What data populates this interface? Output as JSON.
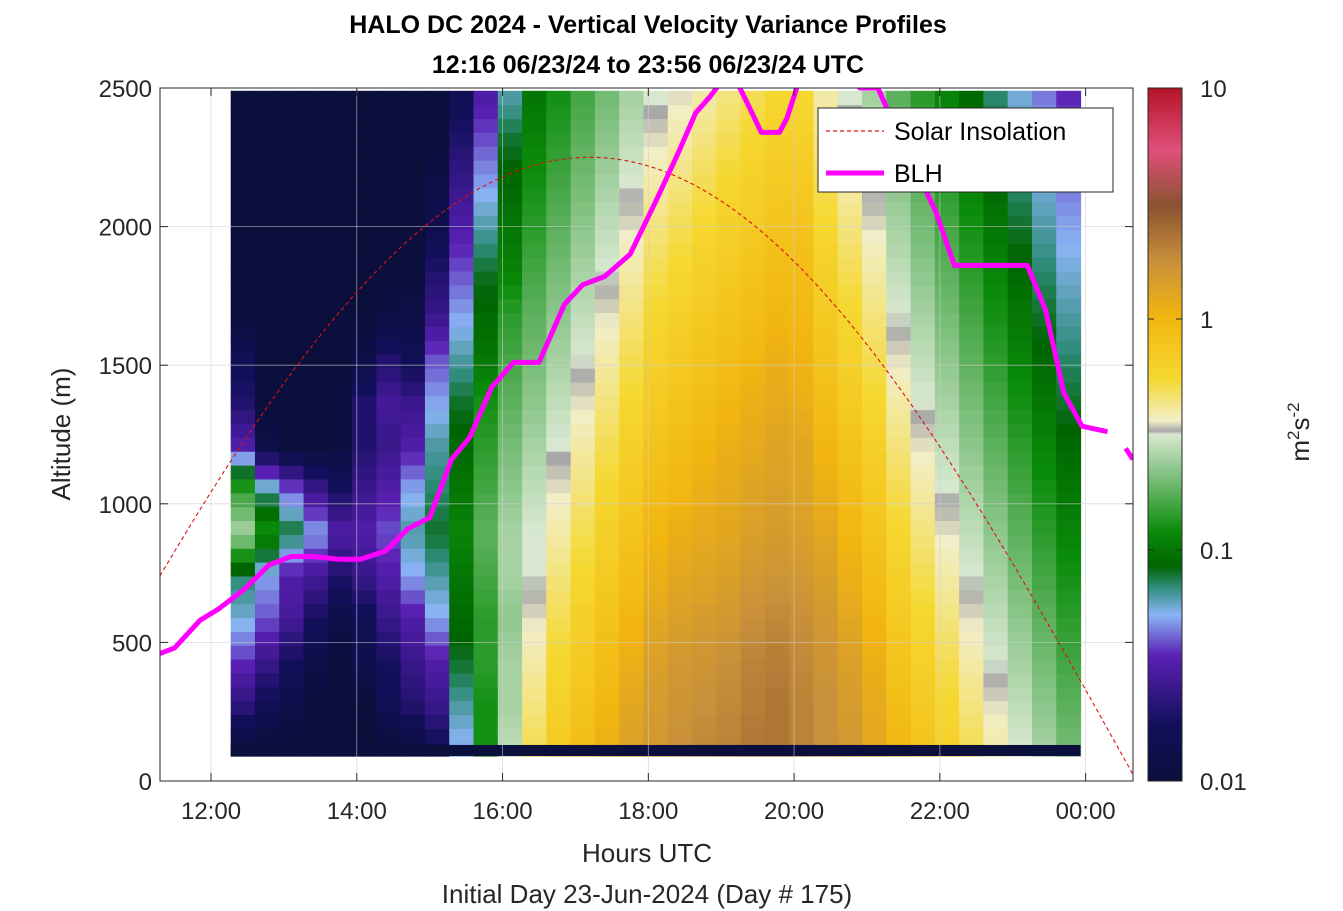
{
  "chart_data": {
    "type": "heatmap",
    "title_line1": "HALO DC 2024 - Vertical Velocity Variance Profiles",
    "title_line2": "12:16 06/23/24 to 23:56 06/23/24  UTC",
    "xlabel": "Hours UTC",
    "xlabel2": "Initial Day 23-Jun-2024 (Day # 175)",
    "ylabel": "Altitude (m)",
    "xlim": [
      11.3,
      24.65
    ],
    "ylim": [
      0,
      2500
    ],
    "x_ticks": [
      12,
      14,
      16,
      18,
      20,
      22,
      24
    ],
    "x_tick_labels": [
      "12:00",
      "14:00",
      "16:00",
      "18:00",
      "20:00",
      "22:00",
      "00:00"
    ],
    "y_ticks": [
      0,
      500,
      1000,
      1500,
      2000,
      2500
    ],
    "y_tick_labels": [
      "0",
      "500",
      "1000",
      "1500",
      "2000",
      "2500"
    ],
    "grid": true,
    "colorbar": {
      "scale": "log",
      "range": [
        0.01,
        10
      ],
      "ticks": [
        0.01,
        0.1,
        1,
        10
      ],
      "tick_labels": [
        "0.01",
        "0.1",
        "1",
        "10"
      ],
      "label_base": "m",
      "label_exp1": "2",
      "label_mid": "s",
      "label_exp2": "-2",
      "stops": [
        {
          "pos": 0.0,
          "color": "#0a0f3c"
        },
        {
          "pos": 0.08,
          "color": "#120f5a"
        },
        {
          "pos": 0.18,
          "color": "#5a1fb4"
        },
        {
          "pos": 0.24,
          "color": "#8ab4f5"
        },
        {
          "pos": 0.28,
          "color": "#2f8c7a"
        },
        {
          "pos": 0.31,
          "color": "#006400"
        },
        {
          "pos": 0.36,
          "color": "#0a8c0a"
        },
        {
          "pos": 0.44,
          "color": "#7ec07e"
        },
        {
          "pos": 0.5,
          "color": "#d8e8d0"
        },
        {
          "pos": 0.505,
          "color": "#a8a8a8"
        },
        {
          "pos": 0.52,
          "color": "#f2eec8"
        },
        {
          "pos": 0.58,
          "color": "#f5d830"
        },
        {
          "pos": 0.67,
          "color": "#f2b510"
        },
        {
          "pos": 0.75,
          "color": "#c8903a"
        },
        {
          "pos": 0.83,
          "color": "#8a5230"
        },
        {
          "pos": 0.91,
          "color": "#e0507a"
        },
        {
          "pos": 1.0,
          "color": "#b41428"
        }
      ]
    },
    "series": [
      {
        "name": "Solar Insolation",
        "style": "dashed",
        "color": "#e01010",
        "peak_x": 17.2,
        "peak_y": 2250,
        "zero_x": 24.7
      },
      {
        "name": "BLH",
        "style": "solid",
        "color": "#ff00ff",
        "x": [
          11.3,
          11.5,
          11.85,
          12.1,
          12.45,
          12.8,
          13.1,
          13.4,
          13.75,
          14.05,
          14.4,
          14.7,
          15.0,
          15.3,
          15.55,
          15.85,
          16.15,
          16.5,
          16.85,
          17.1,
          17.4,
          17.75,
          18.1,
          18.4,
          18.65,
          18.85,
          19.05,
          19.2,
          19.35,
          19.55,
          19.8,
          19.9,
          20.05,
          20.2,
          20.45,
          20.7,
          20.9,
          21.15,
          21.4,
          21.7,
          21.95,
          22.2,
          22.55,
          22.85,
          23.2,
          23.45,
          23.7,
          23.95,
          24.3
        ],
        "y": [
          460,
          480,
          580,
          620,
          690,
          780,
          810,
          810,
          800,
          800,
          830,
          910,
          950,
          1160,
          1240,
          1420,
          1510,
          1510,
          1720,
          1790,
          1820,
          1900,
          2090,
          2260,
          2410,
          2470,
          2540,
          2530,
          2450,
          2340,
          2340,
          2390,
          2510,
          2560,
          2580,
          2560,
          2500,
          2500,
          2350,
          2190,
          2050,
          1860,
          1860,
          1860,
          1860,
          1700,
          1400,
          1280,
          1260
        ]
      },
      {
        "name": "BLH",
        "style": "solid",
        "color": "#ff00ff",
        "x": [
          24.55,
          24.65
        ],
        "y": [
          1200,
          1160
        ]
      }
    ],
    "heatmap": {
      "x_start": 12.27,
      "x_end": 23.93,
      "n_cols": 35,
      "y_start": 90,
      "y_end": 2500,
      "bin_height_m": 50,
      "row_bands": [
        {
          "y_from": 90,
          "y_to": 130,
          "value": 0.01
        }
      ],
      "columns_log10": [
        [
          -2,
          -1.65,
          -1.45,
          -1.25,
          -1.15,
          -0.6,
          -0.85,
          -1.5,
          -1.7,
          -1.8,
          -2,
          -2,
          -2,
          -2,
          -2,
          -2
        ],
        [
          -2,
          -1.8,
          -1.6,
          -1.4,
          -1.3,
          -0.9,
          -1.2,
          -1.9,
          -2,
          -2,
          -2,
          -2,
          -2,
          -2,
          -2,
          -2
        ],
        [
          -2,
          -1.9,
          -1.75,
          -1.55,
          -1.5,
          -1.1,
          -1.4,
          -2,
          -2,
          -2,
          -2,
          -2,
          -2,
          -2,
          -2,
          -2
        ],
        [
          -2,
          -2,
          -1.9,
          -1.75,
          -1.55,
          -1.3,
          -1.6,
          -2,
          -2,
          -2,
          -2,
          -2,
          -2,
          -2,
          -2,
          -2
        ],
        [
          -2,
          -2,
          -2,
          -1.9,
          -1.7,
          -1.5,
          -1.75,
          -1.95,
          -1.95,
          -2,
          -2,
          -2,
          -2,
          -2,
          -2,
          -2
        ],
        [
          -2,
          -2,
          -1.85,
          -1.8,
          -1.6,
          -1.5,
          -1.6,
          -1.7,
          -1.7,
          -1.9,
          -2,
          -2,
          -2,
          -2,
          -2,
          -2
        ],
        [
          -2,
          -1.8,
          -1.75,
          -1.6,
          -1.5,
          -1.4,
          -1.5,
          -1.6,
          -1.55,
          -1.7,
          -1.95,
          -2,
          -2,
          -2,
          -2,
          -2
        ],
        [
          -1.95,
          -1.7,
          -1.6,
          -1.5,
          -1.3,
          -1.2,
          -1.3,
          -1.5,
          -1.6,
          -1.8,
          -1.9,
          -2,
          -2,
          -2,
          -2,
          -2
        ],
        [
          -1.8,
          -1.6,
          -1.5,
          -1.3,
          -1.2,
          -1.1,
          -1.15,
          -1.2,
          -1.3,
          -1.4,
          -1.6,
          -1.7,
          -1.85,
          -1.9,
          -2,
          -2
        ],
        [
          -1.3,
          -1.2,
          -1.1,
          -1.05,
          -1,
          -0.95,
          -1,
          -1.05,
          -1.1,
          -1.2,
          -1.3,
          -1.4,
          -1.5,
          -1.6,
          -1.7,
          -1.8
        ],
        [
          -0.9,
          -0.9,
          -0.85,
          -0.85,
          -0.8,
          -0.75,
          -0.8,
          -0.85,
          -0.9,
          -1,
          -1.05,
          -1.1,
          -1.2,
          -1.3,
          -1.4,
          -1.5
        ],
        [
          -0.55,
          -0.6,
          -0.6,
          -0.65,
          -0.6,
          -0.6,
          -0.65,
          -0.7,
          -0.75,
          -0.8,
          -0.85,
          -0.95,
          -1.0,
          -1.05,
          -1.1,
          -1.2
        ],
        [
          -0.3,
          -0.35,
          -0.4,
          -0.45,
          -0.5,
          -0.5,
          -0.55,
          -0.6,
          -0.65,
          -0.7,
          -0.75,
          -0.8,
          -0.85,
          -0.9,
          -0.95,
          -1.0
        ],
        [
          -0.15,
          -0.2,
          -0.25,
          -0.3,
          -0.35,
          -0.4,
          -0.45,
          -0.5,
          -0.55,
          -0.6,
          -0.65,
          -0.7,
          -0.75,
          -0.8,
          -0.85,
          -0.9
        ],
        [
          -0.05,
          -0.1,
          -0.15,
          -0.2,
          -0.25,
          -0.3,
          -0.35,
          -0.4,
          -0.45,
          -0.5,
          -0.55,
          -0.6,
          -0.65,
          -0.7,
          -0.75,
          -0.8
        ],
        [
          0.05,
          0,
          -0.05,
          -0.1,
          -0.15,
          -0.2,
          -0.25,
          -0.3,
          -0.35,
          -0.4,
          -0.45,
          -0.5,
          -0.55,
          -0.6,
          -0.65,
          -0.7
        ],
        [
          0.15,
          0.1,
          0.05,
          0,
          -0.05,
          -0.1,
          -0.15,
          -0.2,
          -0.25,
          -0.3,
          -0.35,
          -0.4,
          -0.45,
          -0.5,
          -0.55,
          -0.6
        ],
        [
          0.2,
          0.18,
          0.15,
          0.1,
          0.05,
          0,
          -0.05,
          -0.1,
          -0.15,
          -0.2,
          -0.25,
          -0.3,
          -0.35,
          -0.4,
          -0.45,
          -0.5
        ],
        [
          0.25,
          0.22,
          0.2,
          0.15,
          0.1,
          0.05,
          0,
          -0.05,
          -0.1,
          -0.15,
          -0.2,
          -0.25,
          -0.3,
          -0.35,
          -0.4,
          -0.45
        ],
        [
          0.28,
          0.25,
          0.22,
          0.18,
          0.12,
          0.08,
          0.05,
          0,
          -0.05,
          -0.1,
          -0.15,
          -0.2,
          -0.25,
          -0.3,
          -0.35,
          -0.4
        ],
        [
          0.3,
          0.28,
          0.25,
          0.2,
          0.15,
          0.1,
          0.08,
          0.05,
          0,
          -0.05,
          -0.1,
          -0.15,
          -0.2,
          -0.25,
          -0.3,
          -0.35
        ],
        [
          0.35,
          0.32,
          0.3,
          0.25,
          0.2,
          0.15,
          0.12,
          0.08,
          0.05,
          0,
          -0.05,
          -0.1,
          -0.15,
          -0.2,
          -0.25,
          -0.3
        ],
        [
          0.35,
          0.35,
          0.32,
          0.28,
          0.22,
          0.18,
          0.15,
          0.12,
          0.08,
          0.05,
          0,
          -0.05,
          -0.1,
          -0.15,
          -0.2,
          -0.25
        ],
        [
          0.3,
          0.3,
          0.28,
          0.25,
          0.2,
          0.15,
          0.12,
          0.1,
          0.05,
          0.02,
          -0.02,
          -0.05,
          -0.1,
          -0.15,
          -0.2,
          -0.25
        ],
        [
          0.25,
          0.25,
          0.22,
          0.2,
          0.15,
          0.1,
          0.05,
          0,
          -0.05,
          -0.1,
          -0.15,
          -0.2,
          -0.25,
          -0.3,
          -0.35,
          -0.4
        ],
        [
          0.2,
          0.18,
          0.15,
          0.1,
          0.05,
          0,
          -0.05,
          -0.1,
          -0.15,
          -0.2,
          -0.25,
          -0.3,
          -0.35,
          -0.4,
          -0.45,
          -0.5
        ],
        [
          0.1,
          0.08,
          0.05,
          0,
          -0.05,
          -0.1,
          -0.15,
          -0.2,
          -0.25,
          -0.3,
          -0.35,
          -0.4,
          -0.45,
          -0.5,
          -0.55,
          -0.6
        ],
        [
          0,
          -0.05,
          -0.1,
          -0.15,
          -0.2,
          -0.25,
          -0.3,
          -0.35,
          -0.4,
          -0.45,
          -0.5,
          -0.55,
          -0.6,
          -0.65,
          -0.7,
          -0.75
        ],
        [
          -0.1,
          -0.15,
          -0.2,
          -0.25,
          -0.3,
          -0.35,
          -0.4,
          -0.45,
          -0.5,
          -0.55,
          -0.6,
          -0.65,
          -0.7,
          -0.75,
          -0.8,
          -0.85
        ],
        [
          -0.2,
          -0.25,
          -0.3,
          -0.35,
          -0.4,
          -0.45,
          -0.5,
          -0.55,
          -0.6,
          -0.65,
          -0.7,
          -0.75,
          -0.8,
          -0.85,
          -0.9,
          -0.95
        ],
        [
          -0.3,
          -0.35,
          -0.4,
          -0.45,
          -0.5,
          -0.55,
          -0.6,
          -0.65,
          -0.7,
          -0.75,
          -0.8,
          -0.85,
          -0.9,
          -0.95,
          -1.0,
          -1.05
        ],
        [
          -0.4,
          -0.45,
          -0.5,
          -0.55,
          -0.6,
          -0.65,
          -0.7,
          -0.75,
          -0.8,
          -0.85,
          -0.9,
          -0.95,
          -1.0,
          -1.05,
          -1.1,
          -1.15
        ],
        [
          -0.5,
          -0.55,
          -0.6,
          -0.65,
          -0.7,
          -0.75,
          -0.8,
          -0.85,
          -0.9,
          -0.95,
          -1.0,
          -1.05,
          -1.1,
          -1.15,
          -1.2,
          -1.25
        ],
        [
          -0.6,
          -0.65,
          -0.7,
          -0.75,
          -0.8,
          -0.85,
          -0.9,
          -0.95,
          -1.0,
          -1.05,
          -1.1,
          -1.15,
          -1.2,
          -1.25,
          -1.3,
          -1.35
        ],
        [
          -0.7,
          -0.75,
          -0.8,
          -0.85,
          -0.9,
          -0.95,
          -1.0,
          -1.05,
          -1.1,
          -1.15,
          -1.2,
          -1.25,
          -1.3,
          -1.35,
          -1.4,
          -1.45
        ]
      ],
      "column_value_rows_note": ""
    },
    "legend": {
      "placement": "top-right",
      "entries": [
        "Solar Insolation",
        "BLH"
      ]
    }
  }
}
